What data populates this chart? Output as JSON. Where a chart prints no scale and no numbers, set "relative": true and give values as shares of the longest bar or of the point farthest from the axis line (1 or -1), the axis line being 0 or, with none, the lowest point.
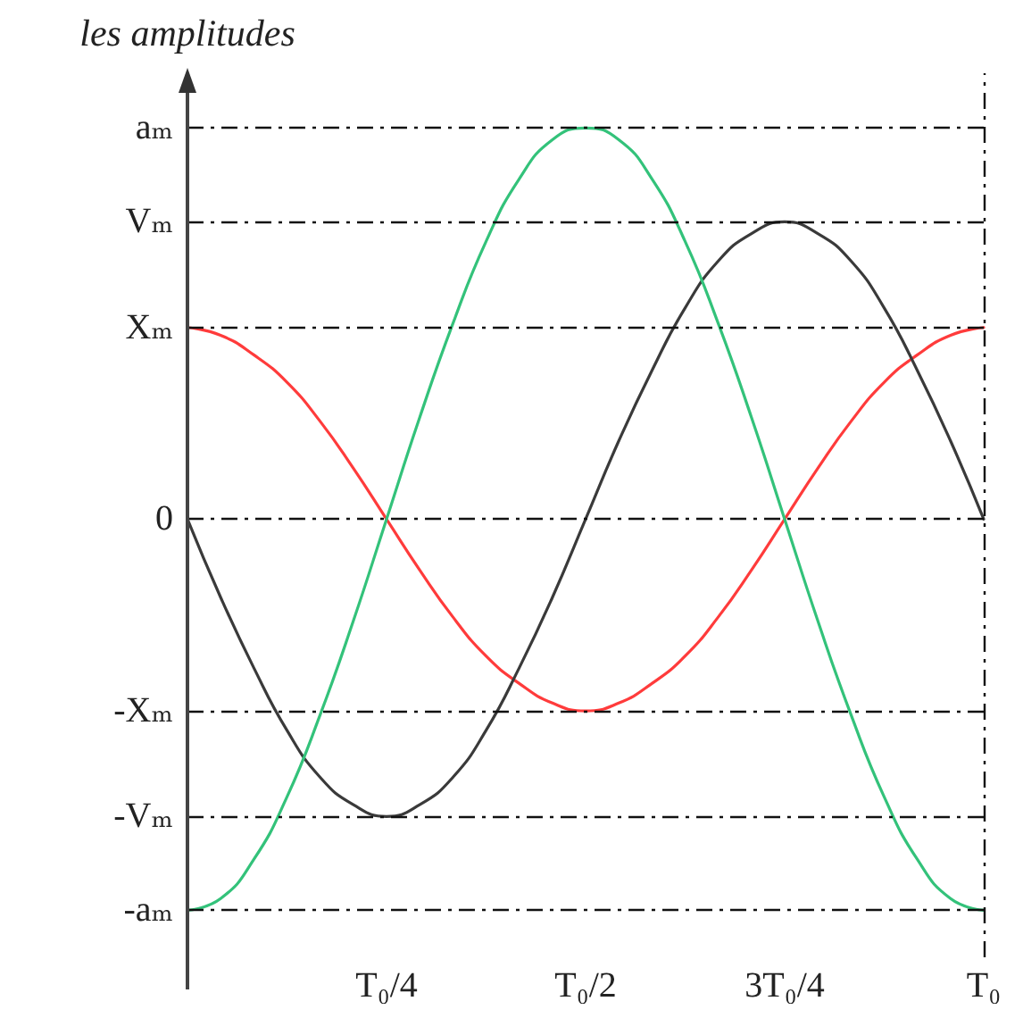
{
  "chart_data": {
    "type": "line",
    "ylabel": "les amplitudes",
    "relative": true,
    "categories": [
      null,
      null,
      null,
      null,
      null,
      null,
      "T₀/4",
      null,
      null,
      null,
      null,
      null,
      "T₀/2",
      null,
      null,
      null,
      null,
      null,
      "3T₀/4",
      null,
      null,
      null,
      null,
      null,
      "T₀"
    ],
    "series": [
      {
        "color": "#ff3b3b",
        "values": [
          0.49,
          0.47,
          0.42,
          0.35,
          0.25,
          0.13,
          0,
          -0.13,
          -0.25,
          -0.35,
          -0.42,
          -0.47,
          -0.49,
          -0.47,
          -0.42,
          -0.35,
          -0.25,
          -0.13,
          0,
          0.13,
          0.25,
          0.35,
          0.42,
          0.47,
          0.49
        ]
      },
      {
        "color": "#3a3a3a",
        "values": [
          0,
          -0.2,
          -0.38,
          -0.54,
          -0.66,
          -0.73,
          -0.76,
          -0.73,
          -0.66,
          -0.54,
          -0.38,
          -0.2,
          0,
          0.2,
          0.38,
          0.54,
          0.66,
          0.73,
          0.76,
          0.73,
          0.66,
          0.54,
          0.38,
          0.2,
          0
        ]
      },
      {
        "color": "#33c27a",
        "values": [
          -1,
          -0.97,
          -0.87,
          -0.71,
          -0.5,
          -0.26,
          0,
          0.26,
          0.5,
          0.71,
          0.87,
          0.97,
          1,
          0.97,
          0.87,
          0.71,
          0.5,
          0.26,
          0,
          -0.26,
          -0.5,
          -0.71,
          -0.87,
          -0.97,
          -1
        ]
      }
    ],
    "ref_lines": [
      {
        "axis": "y",
        "value": 1,
        "label": "aₘ"
      },
      {
        "axis": "y",
        "value": 0.76,
        "label": "Vₘ"
      },
      {
        "axis": "y",
        "value": 0.49,
        "label": "Xₘ"
      },
      {
        "axis": "y",
        "value": 0,
        "label": "0"
      },
      {
        "axis": "y",
        "value": -0.49,
        "label": "-Xₘ"
      },
      {
        "axis": "y",
        "value": -0.76,
        "label": "-Vₘ"
      },
      {
        "axis": "y",
        "value": -1,
        "label": "-aₘ"
      },
      {
        "axis": "x",
        "value": "T₀"
      }
    ],
    "marker": "none",
    "line_style": "solid"
  }
}
